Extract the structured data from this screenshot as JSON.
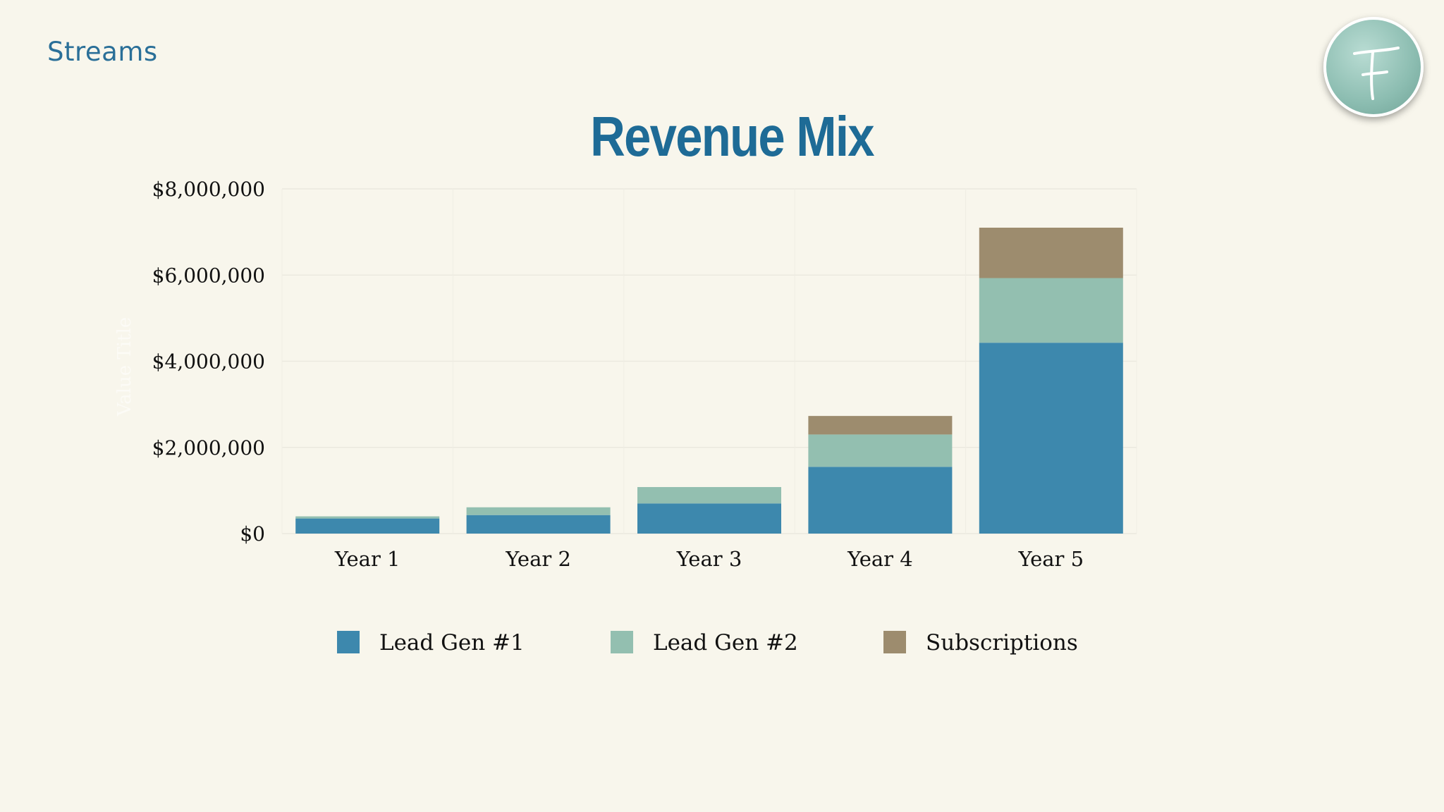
{
  "header": {
    "section": "Streams"
  },
  "chart_data": {
    "type": "bar",
    "stacked": true,
    "title": "Revenue Mix",
    "xlabel": "",
    "ylabel": "Value Title",
    "categories": [
      "Year 1",
      "Year 2",
      "Year 3",
      "Year 4",
      "Year 5"
    ],
    "series": [
      {
        "name": "Lead Gen #1",
        "color": "#3d88ad",
        "values": [
          350000,
          430000,
          700000,
          1550000,
          4430000
        ]
      },
      {
        "name": "Lead Gen #2",
        "color": "#93bfb0",
        "values": [
          50000,
          180000,
          380000,
          750000,
          1500000
        ]
      },
      {
        "name": "Subscriptions",
        "color": "#9d8c6e",
        "values": [
          0,
          0,
          0,
          430000,
          1170000
        ]
      }
    ],
    "ylim": [
      0,
      8000000
    ],
    "yticks": [
      0,
      2000000,
      4000000,
      6000000,
      8000000
    ],
    "ytick_labels": [
      "$0",
      "$2,000,000",
      "$4,000,000",
      "$6,000,000",
      "$8,000,000"
    ],
    "grid": true,
    "legend_position": "bottom"
  }
}
